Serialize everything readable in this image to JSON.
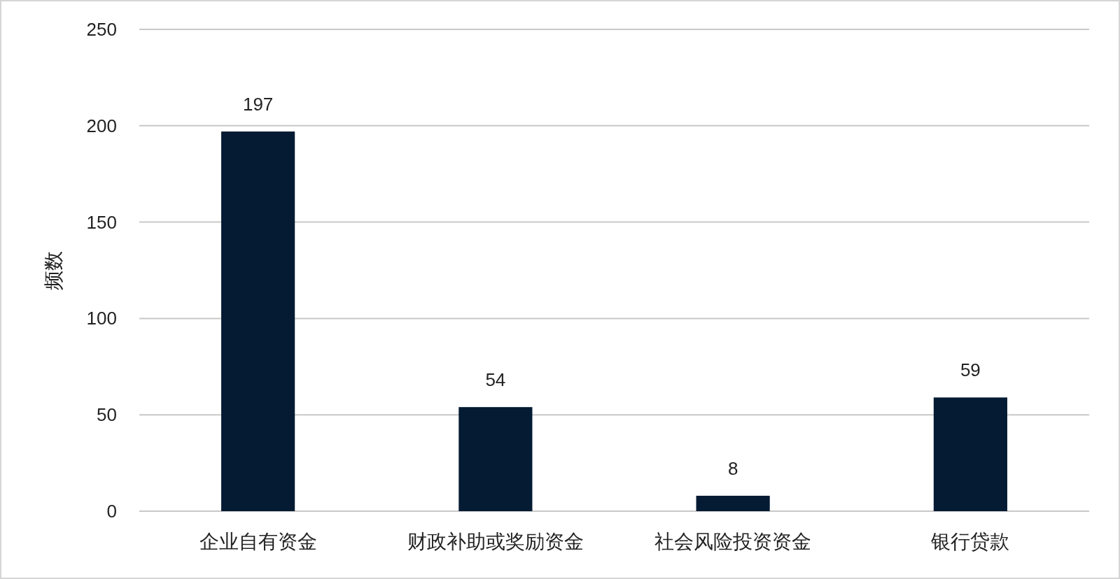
{
  "chart_data": {
    "type": "bar",
    "ylabel": "频数",
    "categories": [
      "企业自有资金",
      "财政补助或奖励资金",
      "社会风险投资资金",
      "银行贷款"
    ],
    "values": [
      197,
      54,
      8,
      59
    ],
    "color": "#041b33",
    "ylim": [
      0,
      250
    ],
    "yticks": [
      0,
      50,
      100,
      150,
      200,
      250
    ],
    "grid": "y",
    "data_labels": true
  }
}
